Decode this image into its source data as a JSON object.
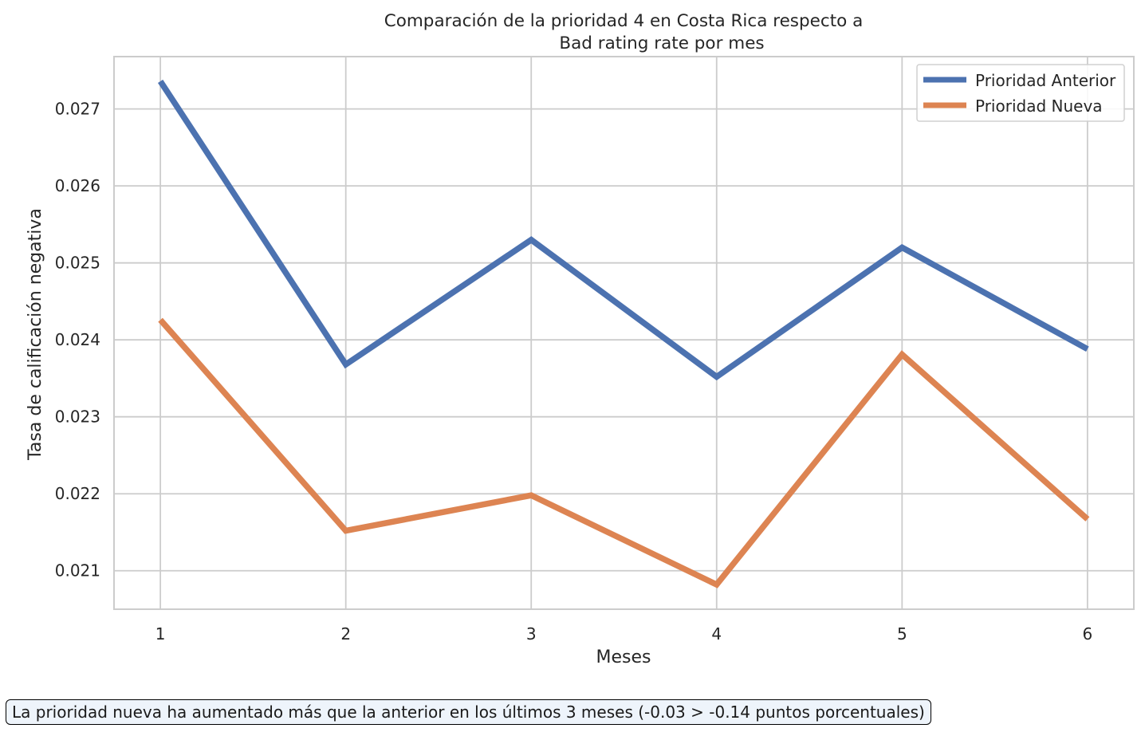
{
  "chart_data": {
    "type": "line",
    "title": "Comparación de la prioridad 4 en Costa Rica respecto a\nBad rating rate por mes",
    "title_lines": [
      "Comparación de la prioridad 4 en Costa Rica respecto a",
      "Bad rating rate por mes"
    ],
    "xlabel": "Meses",
    "ylabel": "Tasa de calificación negativa",
    "x": [
      1,
      2,
      3,
      4,
      5,
      6
    ],
    "xticks": [
      "1",
      "2",
      "3",
      "4",
      "5",
      "6"
    ],
    "yticks": [
      "0.021",
      "0.022",
      "0.023",
      "0.024",
      "0.025",
      "0.026",
      "0.027"
    ],
    "ytick_values": [
      0.021,
      0.022,
      0.023,
      0.024,
      0.025,
      0.026,
      0.027
    ],
    "xlim": [
      0.75,
      6.25
    ],
    "ylim": [
      0.0205,
      0.02768
    ],
    "grid": true,
    "legend_position": "top-right",
    "series": [
      {
        "name": "Prioridad Anterior",
        "color": "#4c72b0",
        "values": [
          0.02736,
          0.02368,
          0.0253,
          0.02352,
          0.0252,
          0.02388
        ]
      },
      {
        "name": "Prioridad Nueva",
        "color": "#dd8452",
        "values": [
          0.02426,
          0.02152,
          0.02198,
          0.02082,
          0.02381,
          0.02167
        ]
      }
    ]
  },
  "annotation": "La prioridad nueva ha aumentado más que la anterior en los últimos 3 meses (-0.03 > -0.14 puntos porcentuales)"
}
